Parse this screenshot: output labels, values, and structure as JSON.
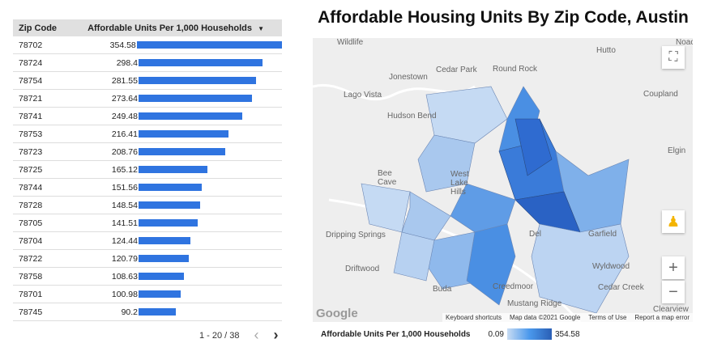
{
  "table": {
    "headers": [
      "Zip Code",
      "Affordable Units Per 1,000 Households"
    ],
    "sort_icon": "sort-desc-icon",
    "max": 354.58,
    "bar_color": "#2f74e0",
    "rows": [
      [
        "78702",
        "354.58"
      ],
      [
        "78724",
        "298.4"
      ],
      [
        "78754",
        "281.55"
      ],
      [
        "78721",
        "273.64"
      ],
      [
        "78741",
        "249.48"
      ],
      [
        "78753",
        "216.41"
      ],
      [
        "78723",
        "208.76"
      ],
      [
        "78725",
        "165.12"
      ],
      [
        "78744",
        "151.56"
      ],
      [
        "78728",
        "148.54"
      ],
      [
        "78705",
        "141.51"
      ],
      [
        "78704",
        "124.44"
      ],
      [
        "78722",
        "120.79"
      ],
      [
        "78758",
        "108.63"
      ],
      [
        "78701",
        "100.98"
      ],
      [
        "78745",
        "90.2"
      ]
    ]
  },
  "pager": {
    "range": "1 - 20 / 38",
    "prev": "‹",
    "next": "›"
  },
  "map": {
    "title": "Affordable Housing Units By Zip Code, Austin",
    "places": [
      "Wildlife",
      "Hutto",
      "Noack",
      "Round Rock",
      "Cedar Park",
      "Jonestown",
      "Lago Vista",
      "Coupland",
      "Hudson Bend",
      "Elgin",
      "Bee Cave",
      "West Lake Hills",
      "Dripping Springs",
      "Driftwood",
      "Wyldwood",
      "Buda",
      "Creedmoor",
      "Mustang Ridge",
      "Cedar Creek",
      "Garfield",
      "Del",
      "Clearview"
    ],
    "google": "Google",
    "footer": [
      "Keyboard shortcuts",
      "Map data ©2021 Google",
      "Terms of Use",
      "Report a map error"
    ],
    "zoom_in": "+",
    "zoom_out": "−",
    "fullscreen": "⛶"
  },
  "legend": {
    "label": "Affordable Units Per 1,000 Households",
    "min": "0.09",
    "max": "354.58",
    "colors": [
      "#c8dcf3",
      "#4a98ec",
      "#2a5fb5"
    ]
  }
}
